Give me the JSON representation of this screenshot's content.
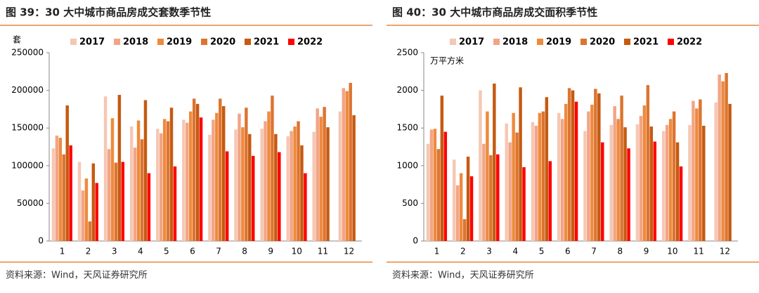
{
  "chart_data": [
    {
      "type": "bar",
      "title": "图 39：30 大中城市商品房成交套数季节性",
      "y_unit": "套",
      "source": "资料来源：Wind，天风证券研究所",
      "categories": [
        "1",
        "2",
        "3",
        "4",
        "5",
        "6",
        "7",
        "8",
        "9",
        "10",
        "11",
        "12"
      ],
      "series": [
        {
          "name": "2017",
          "color": "#f6c7b3",
          "values": [
            123000,
            105000,
            192000,
            152000,
            149000,
            161000,
            141000,
            148000,
            149000,
            139000,
            145000,
            172000
          ]
        },
        {
          "name": "2018",
          "color": "#f2a487",
          "values": [
            140000,
            67000,
            122000,
            124000,
            143000,
            157000,
            161000,
            169000,
            159000,
            146000,
            176000,
            203000
          ]
        },
        {
          "name": "2019",
          "color": "#ee8a3c",
          "values": [
            137000,
            83000,
            163000,
            160000,
            162000,
            172000,
            170000,
            151000,
            172000,
            152000,
            165000,
            199000
          ]
        },
        {
          "name": "2020",
          "color": "#dc7430",
          "values": [
            115000,
            26000,
            104000,
            135000,
            159000,
            189000,
            189000,
            177000,
            193000,
            159000,
            178000,
            210000
          ]
        },
        {
          "name": "2021",
          "color": "#c55a11",
          "values": [
            180000,
            103000,
            194000,
            187000,
            177000,
            182000,
            179000,
            142000,
            142000,
            127000,
            151000,
            167000
          ]
        },
        {
          "name": "2022",
          "color": "#ff0000",
          "values": [
            127000,
            77000,
            105000,
            90000,
            99000,
            164000,
            119000,
            113000,
            118000,
            90000,
            null,
            null
          ]
        }
      ],
      "ylim": [
        0,
        250000
      ],
      "yticks": [
        0,
        50000,
        100000,
        150000,
        200000,
        250000
      ]
    },
    {
      "type": "bar",
      "title": "图 40：30 大中城市商品房成交面积季节性",
      "y_unit": "万平方米",
      "source": "资料来源：Wind，天风证券研究所",
      "categories": [
        "1",
        "2",
        "3",
        "4",
        "5",
        "6",
        "7",
        "8",
        "9",
        "10",
        "11",
        "12"
      ],
      "series": [
        {
          "name": "2017",
          "color": "#f6c7b3",
          "values": [
            1290,
            1080,
            2000,
            1560,
            1580,
            1700,
            1460,
            1540,
            1550,
            1460,
            1540,
            1840
          ]
        },
        {
          "name": "2018",
          "color": "#f2a487",
          "values": [
            1480,
            740,
            1290,
            1310,
            1530,
            1620,
            1720,
            1790,
            1660,
            1540,
            1860,
            2210
          ]
        },
        {
          "name": "2019",
          "color": "#ee8a3c",
          "values": [
            1490,
            900,
            1720,
            1700,
            1700,
            1820,
            1810,
            1620,
            1800,
            1620,
            1760,
            2120
          ]
        },
        {
          "name": "2020",
          "color": "#dc7430",
          "values": [
            1220,
            290,
            1140,
            1440,
            1720,
            2030,
            2020,
            1930,
            2070,
            1720,
            1880,
            2230
          ]
        },
        {
          "name": "2021",
          "color": "#c55a11",
          "values": [
            1930,
            1120,
            2090,
            2040,
            1910,
            2000,
            1960,
            1510,
            1520,
            1310,
            1530,
            1820
          ]
        },
        {
          "name": "2022",
          "color": "#ff0000",
          "values": [
            1450,
            860,
            1150,
            980,
            1060,
            1850,
            1310,
            1230,
            1320,
            990,
            null,
            null
          ]
        }
      ],
      "ylim": [
        0,
        2500
      ],
      "yticks": [
        0,
        500,
        1000,
        1500,
        2000,
        2500
      ]
    }
  ]
}
